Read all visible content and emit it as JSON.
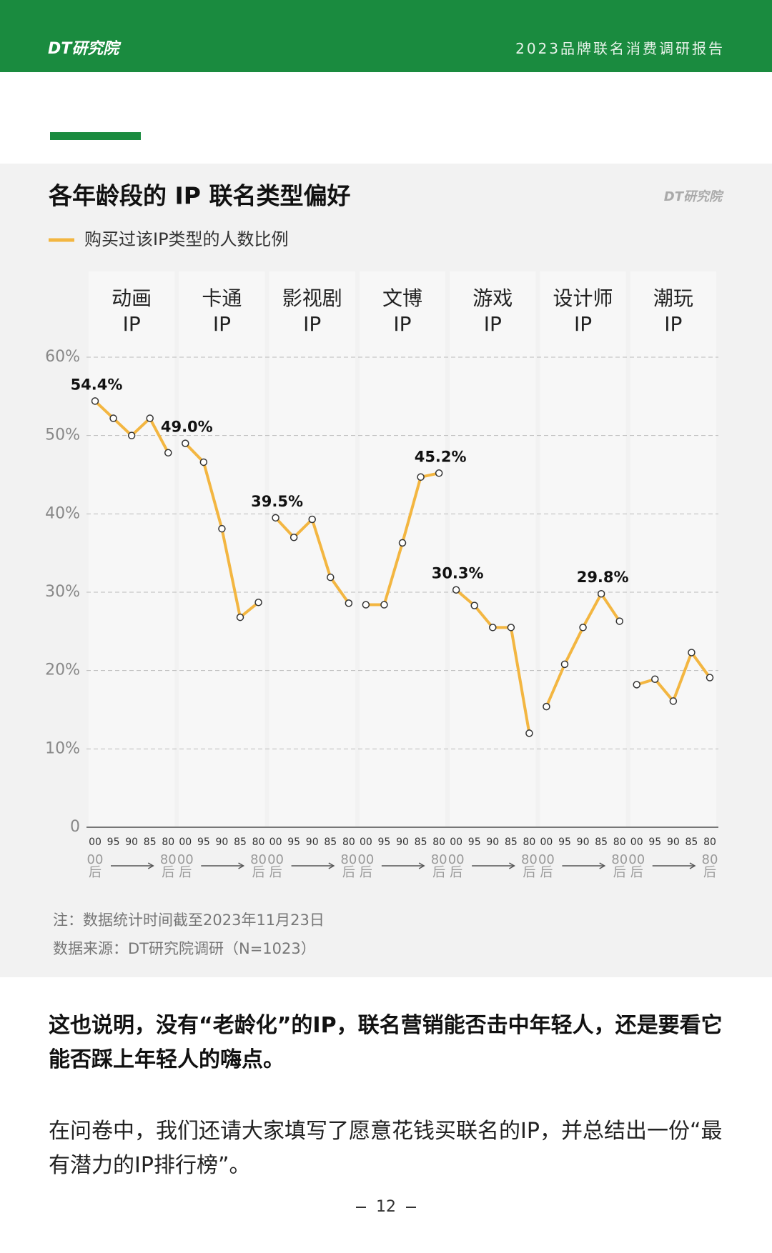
{
  "header": {
    "brand": "DT研究院",
    "report_title": "2023品牌联名消费调研报告"
  },
  "chart_data": {
    "type": "line",
    "title": "各年龄段的 IP 联名类型偏好",
    "watermark": "DT研究院",
    "legend_label": "购买过该IP类型的人数比例",
    "color": "#f3b641",
    "categories": [
      "00",
      "95",
      "90",
      "85",
      "80"
    ],
    "range_labels": {
      "from": "00\n后",
      "to": "80\n后"
    },
    "ylim": [
      0,
      60
    ],
    "yticks": [
      0,
      {
        "value": 10,
        "label": "10%"
      },
      {
        "value": 20,
        "label": "20%"
      },
      {
        "value": 30,
        "label": "30%"
      },
      {
        "value": 40,
        "label": "40%"
      },
      {
        "value": 50,
        "label": "50%"
      },
      {
        "value": 60,
        "label": "60%"
      }
    ],
    "grid": true,
    "panels": [
      {
        "name": "动画\nIP",
        "values": [
          54.4,
          52.2,
          50.0,
          52.2,
          47.8
        ],
        "value_labels": [
          "54.4%",
          null,
          null,
          null,
          null
        ]
      },
      {
        "name": "卡通\nIP",
        "values": [
          49.0,
          46.6,
          38.1,
          26.8,
          28.7
        ],
        "value_labels": [
          "49.0%",
          null,
          null,
          null,
          null
        ]
      },
      {
        "name": "影视剧\nIP",
        "values": [
          39.5,
          37.0,
          39.3,
          31.9,
          28.6
        ],
        "value_labels": [
          "39.5%",
          null,
          null,
          null,
          null
        ]
      },
      {
        "name": "文博\nIP",
        "values": [
          28.4,
          28.4,
          36.3,
          44.7,
          45.2
        ],
        "value_labels": [
          null,
          null,
          null,
          null,
          "45.2%"
        ]
      },
      {
        "name": "游戏\nIP",
        "values": [
          30.3,
          28.3,
          25.5,
          25.5,
          12.0
        ],
        "value_labels": [
          "30.3%",
          null,
          null,
          null,
          null
        ]
      },
      {
        "name": "设计师\nIP",
        "values": [
          15.4,
          20.8,
          25.5,
          29.8,
          26.3
        ],
        "value_labels": [
          null,
          null,
          null,
          "29.8%",
          null
        ]
      },
      {
        "name": "潮玩\nIP",
        "values": [
          18.2,
          18.9,
          16.1,
          22.3,
          19.1
        ],
        "value_labels": [
          null,
          null,
          null,
          null,
          null
        ]
      }
    ],
    "notes": [
      "注：数据统计时间截至2023年11月23日",
      "数据来源：DT研究院调研（N=1023）"
    ]
  },
  "paragraphs": [
    "这也说明，没有“老龄化”的IP，联名营销能否击中年轻人，还是要看它能否踩上年轻人的嗨点。",
    "在问卷中，我们还请大家填写了愿意花钱买联名的IP，并总结出一份“最有潜力的IP排行榜”。"
  ],
  "page_number": "12"
}
